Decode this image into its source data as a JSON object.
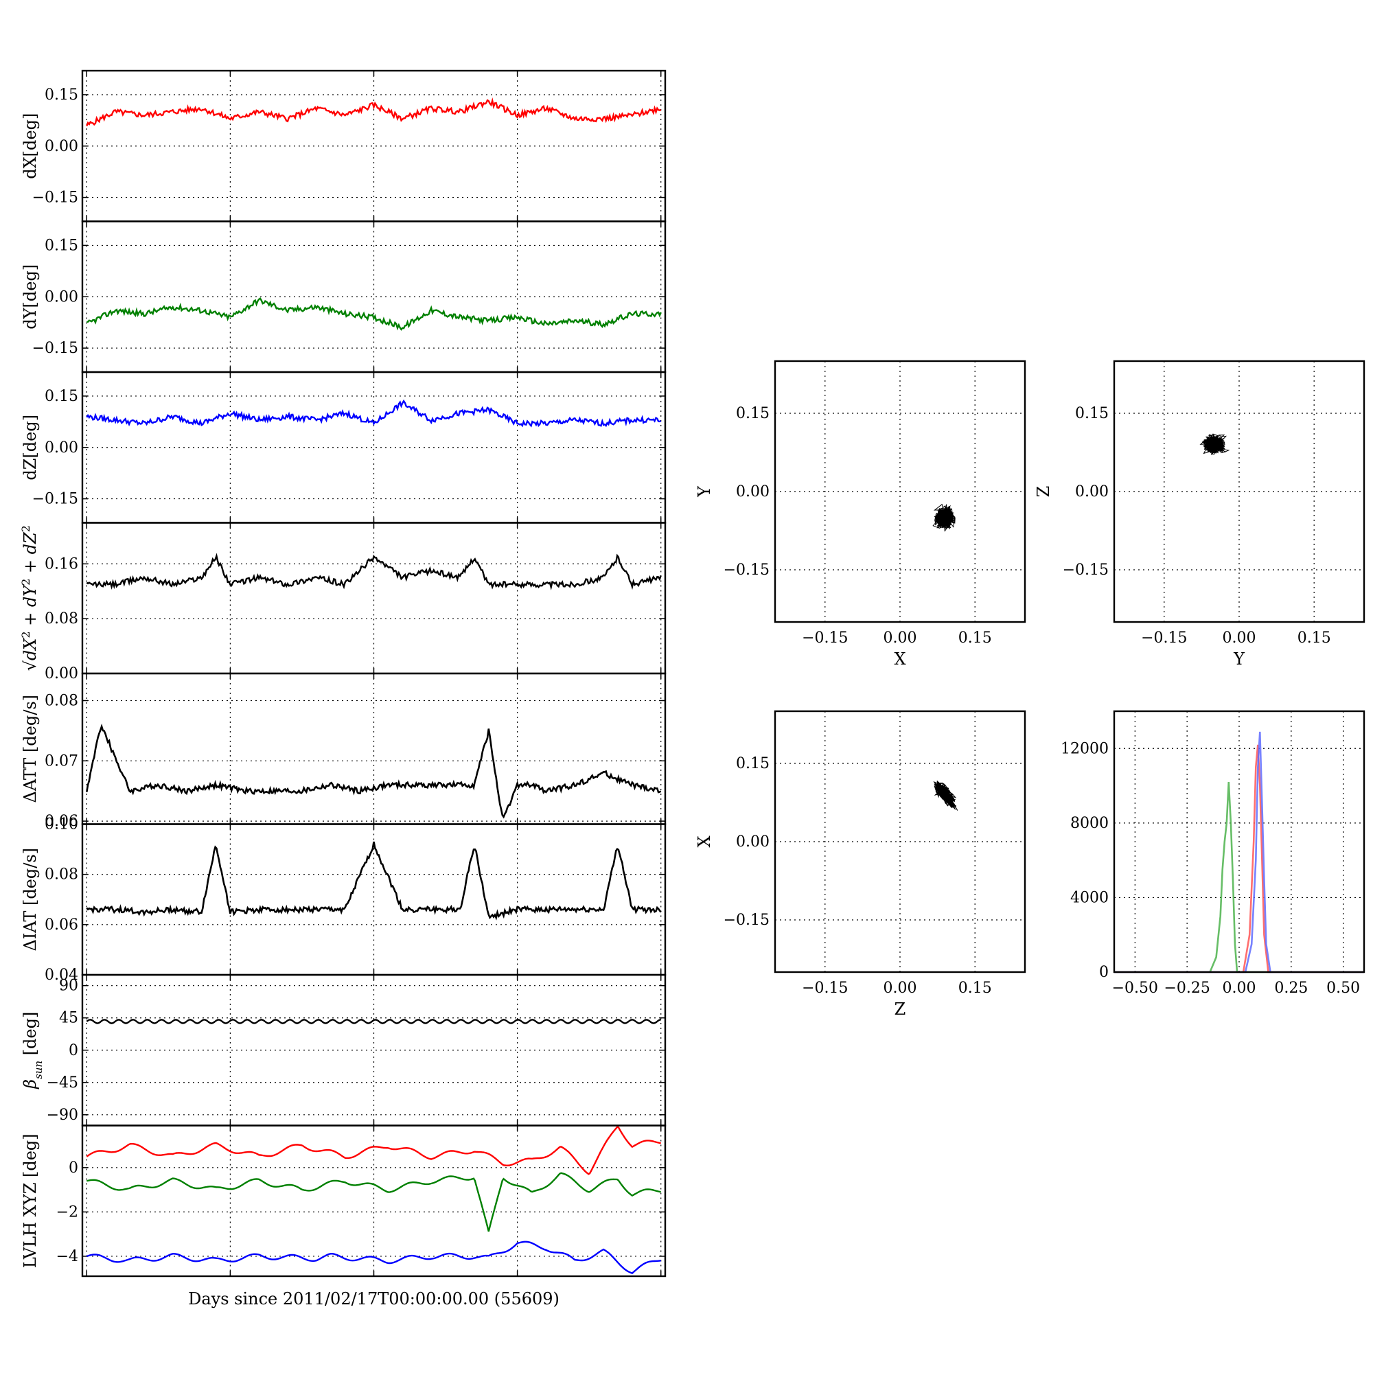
{
  "xlabel": "Days since 2011/02/17T00:00:00.00 (55609)",
  "chart_data": [
    {
      "type": "line",
      "ylabel": "dX[deg]",
      "ylim": [
        -0.22,
        0.22
      ],
      "yticks": [
        "0.15",
        "0.00",
        "−0.15"
      ],
      "ytick_values": [
        0.15,
        0,
        -0.15
      ],
      "grid": true,
      "series": [
        {
          "color": "#ff0000",
          "x": [
            0,
            2,
            4,
            6,
            8,
            10,
            12,
            14,
            16,
            18,
            20,
            22,
            24,
            26,
            28,
            30,
            32,
            34,
            36,
            38,
            40
          ],
          "y": [
            0.06,
            0.1,
            0.09,
            0.1,
            0.11,
            0.08,
            0.1,
            0.08,
            0.11,
            0.09,
            0.12,
            0.08,
            0.11,
            0.1,
            0.13,
            0.09,
            0.11,
            0.08,
            0.08,
            0.09,
            0.11
          ]
        }
      ]
    },
    {
      "type": "line",
      "ylabel": "dY[deg]",
      "ylim": [
        -0.22,
        0.22
      ],
      "yticks": [
        "0.15",
        "0.00",
        "−0.15"
      ],
      "ytick_values": [
        0.15,
        0,
        -0.15
      ],
      "grid": true,
      "series": [
        {
          "color": "#008000",
          "x": [
            0,
            2,
            4,
            6,
            8,
            10,
            12,
            14,
            16,
            18,
            20,
            22,
            24,
            26,
            28,
            30,
            32,
            34,
            36,
            38,
            40
          ],
          "y": [
            -0.08,
            -0.04,
            -0.05,
            -0.03,
            -0.04,
            -0.06,
            -0.01,
            -0.04,
            -0.03,
            -0.05,
            -0.06,
            -0.09,
            -0.04,
            -0.06,
            -0.07,
            -0.06,
            -0.08,
            -0.07,
            -0.08,
            -0.05,
            -0.05
          ]
        }
      ]
    },
    {
      "type": "line",
      "ylabel": "dZ[deg]",
      "ylim": [
        -0.22,
        0.22
      ],
      "yticks": [
        "0.15",
        "0.00",
        "−0.15"
      ],
      "ytick_values": [
        0.15,
        0,
        -0.15
      ],
      "grid": true,
      "series": [
        {
          "color": "#0000ff",
          "x": [
            0,
            2,
            4,
            6,
            8,
            10,
            12,
            14,
            16,
            18,
            20,
            22,
            24,
            26,
            28,
            30,
            32,
            34,
            36,
            38,
            40
          ],
          "y": [
            0.09,
            0.08,
            0.07,
            0.09,
            0.07,
            0.1,
            0.08,
            0.09,
            0.08,
            0.1,
            0.07,
            0.13,
            0.08,
            0.1,
            0.11,
            0.07,
            0.07,
            0.08,
            0.07,
            0.08,
            0.08
          ]
        }
      ]
    },
    {
      "type": "line",
      "ylabel": "sqrt(dX^2+dY^2+dZ^2)",
      "ylim": [
        0,
        0.22
      ],
      "yticks": [
        "0.16",
        "0.08",
        "0.00"
      ],
      "ytick_values": [
        0.16,
        0.08,
        0
      ],
      "grid": true,
      "series": [
        {
          "color": "#000000",
          "x": [
            0,
            2,
            4,
            6,
            8,
            9,
            10,
            12,
            14,
            16,
            18,
            20,
            22,
            24,
            26,
            27,
            28,
            30,
            32,
            34,
            36,
            37,
            38,
            40
          ],
          "y": [
            0.13,
            0.13,
            0.14,
            0.13,
            0.14,
            0.17,
            0.13,
            0.14,
            0.13,
            0.14,
            0.13,
            0.17,
            0.14,
            0.15,
            0.14,
            0.17,
            0.13,
            0.13,
            0.13,
            0.13,
            0.14,
            0.17,
            0.13,
            0.14
          ]
        }
      ]
    },
    {
      "type": "line",
      "ylabel": "ΔATT [deg/s]",
      "ylim": [
        0.0595,
        0.0845
      ],
      "yticks": [
        "0.08",
        "0.07",
        "0.06"
      ],
      "ytick_values": [
        0.08,
        0.07,
        0.06
      ],
      "grid": true,
      "series": [
        {
          "color": "#000000",
          "x": [
            0,
            1,
            3,
            5,
            7,
            9,
            11,
            13,
            15,
            17,
            19,
            21,
            23,
            25,
            27,
            28,
            29,
            30,
            31,
            32,
            34,
            36,
            38,
            40
          ],
          "y": [
            0.065,
            0.076,
            0.065,
            0.066,
            0.065,
            0.066,
            0.065,
            0.065,
            0.065,
            0.066,
            0.065,
            0.066,
            0.066,
            0.066,
            0.066,
            0.075,
            0.06,
            0.066,
            0.066,
            0.065,
            0.066,
            0.068,
            0.066,
            0.065
          ]
        }
      ]
    },
    {
      "type": "line",
      "ylabel": "ΔIAT [deg/s]",
      "ylim": [
        0.04,
        0.1
      ],
      "yticks": [
        "0.10",
        "0.08",
        "0.06",
        "0.04"
      ],
      "ytick_values": [
        0.1,
        0.08,
        0.06,
        0.04
      ],
      "grid": true,
      "series": [
        {
          "color": "#000000",
          "x": [
            0,
            2,
            4,
            6,
            8,
            9,
            10,
            12,
            14,
            16,
            18,
            20,
            22,
            24,
            26,
            27,
            28,
            30,
            32,
            34,
            36,
            37,
            38,
            40
          ],
          "y": [
            0.066,
            0.066,
            0.065,
            0.066,
            0.065,
            0.092,
            0.065,
            0.066,
            0.066,
            0.066,
            0.066,
            0.092,
            0.066,
            0.066,
            0.066,
            0.092,
            0.063,
            0.066,
            0.066,
            0.066,
            0.066,
            0.092,
            0.066,
            0.066
          ]
        }
      ]
    },
    {
      "type": "line",
      "ylabel": "βsun [deg]",
      "ylim": [
        -105,
        105
      ],
      "yticks": [
        "90",
        "45",
        "0",
        "−45",
        "−90"
      ],
      "ytick_values": [
        90,
        45,
        0,
        -45,
        -90
      ],
      "grid": true,
      "series": [
        {
          "color": "#000000",
          "x": [
            0,
            40
          ],
          "y": [
            40,
            40
          ]
        }
      ]
    },
    {
      "type": "line",
      "ylabel": "LVLH XYZ [deg]",
      "ylim": [
        -4.9,
        1.9
      ],
      "yticks": [
        "0",
        "−2",
        "−4"
      ],
      "ytick_values": [
        0,
        -2,
        -4
      ],
      "grid": true,
      "series": [
        {
          "color": "#ff0000",
          "x": [
            0,
            3,
            6,
            9,
            12,
            15,
            18,
            21,
            24,
            27,
            29,
            31,
            33,
            35,
            37,
            38,
            40
          ],
          "y": [
            0.5,
            1.0,
            0.5,
            1.0,
            0.5,
            1.0,
            0.5,
            1.0,
            0.5,
            0.8,
            0.2,
            0.3,
            0.9,
            -0.2,
            1.9,
            1.0,
            1.2
          ]
        },
        {
          "color": "#008000",
          "x": [
            0,
            3,
            6,
            9,
            12,
            15,
            18,
            21,
            24,
            27,
            28,
            29,
            31,
            33,
            35,
            37,
            38,
            40
          ],
          "y": [
            -0.6,
            -1.0,
            -0.6,
            -1.0,
            -0.6,
            -1.0,
            -0.6,
            -1.0,
            -0.6,
            -0.4,
            -3.0,
            -0.4,
            -1.2,
            -0.3,
            -1.0,
            -0.5,
            -1.2,
            -1.0
          ]
        },
        {
          "color": "#0000ff",
          "x": [
            0,
            3,
            6,
            9,
            12,
            16,
            17,
            21,
            24,
            27,
            28,
            30,
            32,
            34,
            36,
            38,
            40
          ],
          "y": [
            -4.0,
            -4.2,
            -4.0,
            -4.2,
            -4.0,
            -4.1,
            -4.0,
            -4.2,
            -4.0,
            -4.0,
            -4.1,
            -3.4,
            -3.6,
            -4.2,
            -3.8,
            -4.7,
            -4.1
          ]
        }
      ]
    },
    {
      "type": "scatter",
      "xlabel": "X",
      "ylabel": "Y",
      "xlim": [
        -0.25,
        0.25
      ],
      "ylim": [
        -0.25,
        0.25
      ],
      "ticks": [
        "−0.15",
        "0.00",
        "0.15"
      ],
      "tick_values": [
        -0.15,
        0,
        0.15
      ],
      "grid": true,
      "center": [
        0.09,
        -0.05
      ],
      "spread": [
        0.024,
        0.024
      ]
    },
    {
      "type": "scatter",
      "xlabel": "Y",
      "ylabel": "Z",
      "xlim": [
        -0.25,
        0.25
      ],
      "ylim": [
        -0.25,
        0.25
      ],
      "ticks": [
        "−0.15",
        "0.00",
        "0.15"
      ],
      "tick_values": [
        -0.15,
        0,
        0.15
      ],
      "grid": true,
      "center": [
        -0.05,
        0.09
      ],
      "spread": [
        0.025,
        0.02
      ]
    },
    {
      "type": "scatter",
      "xlabel": "Z",
      "ylabel": "X",
      "xlim": [
        -0.25,
        0.25
      ],
      "ylim": [
        -0.25,
        0.25
      ],
      "ticks": [
        "−0.15",
        "0.00",
        "0.15"
      ],
      "tick_values": [
        -0.15,
        0,
        0.15
      ],
      "grid": true,
      "center": [
        0.09,
        0.09
      ],
      "spread": [
        0.025,
        0.018
      ]
    },
    {
      "type": "line",
      "subtype": "histogram",
      "xlim": [
        -0.6,
        0.6
      ],
      "ylim": [
        0,
        14000
      ],
      "xticks": [
        "−0.50",
        "−0.25",
        "0.00",
        "0.25",
        "0.50"
      ],
      "xtick_values": [
        -0.5,
        -0.25,
        0,
        0.25,
        0.5
      ],
      "yticks": [
        "12000",
        "8000",
        "4000",
        "0"
      ],
      "ytick_values": [
        12000,
        8000,
        4000,
        0
      ],
      "grid": true,
      "series": [
        {
          "color": "#4cb34c",
          "x": [
            -0.14,
            -0.11,
            -0.09,
            -0.08,
            -0.07,
            -0.06,
            -0.05,
            -0.04,
            -0.03,
            -0.02,
            -0.01
          ],
          "y": [
            0,
            800,
            3000,
            5500,
            7000,
            8000,
            10200,
            8000,
            5000,
            1500,
            0
          ]
        },
        {
          "color": "#ff5555",
          "x": [
            0.02,
            0.05,
            0.07,
            0.08,
            0.09,
            0.1,
            0.11,
            0.12,
            0.14
          ],
          "y": [
            0,
            2000,
            7000,
            11000,
            12200,
            10000,
            6000,
            2000,
            0
          ]
        },
        {
          "color": "#5f6cff",
          "x": [
            0.03,
            0.06,
            0.08,
            0.09,
            0.1,
            0.11,
            0.12,
            0.13,
            0.15
          ],
          "y": [
            0,
            1500,
            6000,
            11000,
            12900,
            9000,
            5000,
            1500,
            0
          ]
        }
      ]
    }
  ]
}
